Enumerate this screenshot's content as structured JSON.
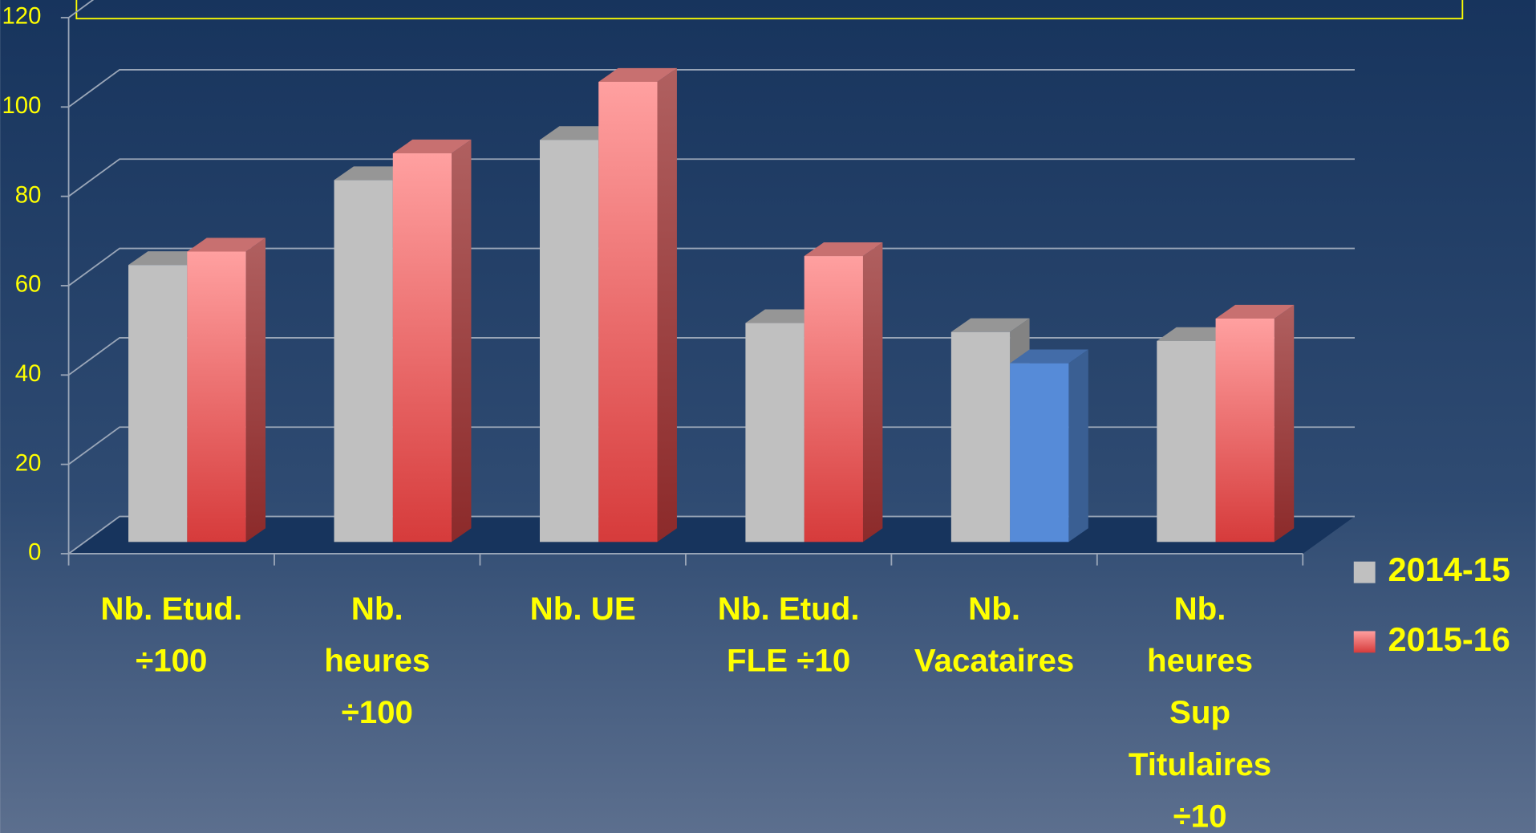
{
  "chart_data": {
    "type": "bar",
    "categories": [
      "Nb. Etud.\n÷100",
      "Nb.\nheures\n÷100",
      "Nb. UE",
      "Nb. Etud.\nFLE ÷10",
      "Nb.\nVacataires",
      "Nb.\nheures\nSup\nTitulaires\n÷10"
    ],
    "series": [
      {
        "name": "2014-15",
        "color": "#c0c0c0",
        "values": [
          62,
          81,
          90,
          49,
          47,
          45
        ]
      },
      {
        "name": "2015-16",
        "color": "#ff8f8f",
        "colors": [
          "#ff8f8f",
          "#ff8f8f",
          "#ff8f8f",
          "#ff8f8f",
          "#568bd8",
          "#ff8f8f"
        ],
        "values": [
          65,
          87,
          103,
          64,
          40,
          50
        ]
      }
    ],
    "ylim": [
      0,
      120
    ],
    "yticks": [
      0,
      20,
      40,
      60,
      80,
      100,
      120
    ],
    "grid": true,
    "legend": "right"
  }
}
